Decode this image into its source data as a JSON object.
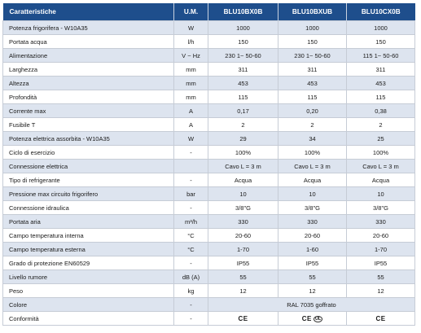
{
  "header": {
    "characteristics": "Caratteristiche",
    "unit": "U.M.",
    "models": [
      "BLU10BX0B",
      "BLU10BXUB",
      "BLU10CX0B"
    ]
  },
  "rows": [
    {
      "name": "Potenza frigorifera - W10A35",
      "unit": "W",
      "values": [
        "1000",
        "1000",
        "1000"
      ]
    },
    {
      "name": "Portata acqua",
      "unit": "l/h",
      "values": [
        "150",
        "150",
        "150"
      ]
    },
    {
      "name": "Alimentazione",
      "unit": "V ~ Hz",
      "values": [
        "230 1~ 50-60",
        "230 1~ 50-60",
        "115 1~ 50-60"
      ]
    },
    {
      "name": "Larghezza",
      "unit": "mm",
      "values": [
        "311",
        "311",
        "311"
      ]
    },
    {
      "name": "Altezza",
      "unit": "mm",
      "values": [
        "453",
        "453",
        "453"
      ]
    },
    {
      "name": "Profondità",
      "unit": "mm",
      "values": [
        "115",
        "115",
        "115"
      ]
    },
    {
      "name": "Corrente max",
      "unit": "A",
      "values": [
        "0,17",
        "0,20",
        "0,38"
      ]
    },
    {
      "name": "Fusibile T",
      "unit": "A",
      "values": [
        "2",
        "2",
        "2"
      ]
    },
    {
      "name": "Potenza elettrica assorbita - W10A35",
      "unit": "W",
      "values": [
        "29",
        "34",
        "25"
      ]
    },
    {
      "name": "Ciclo di esercizio",
      "unit": "-",
      "values": [
        "100%",
        "100%",
        "100%"
      ]
    },
    {
      "name": "Connessione elettrica",
      "unit": "",
      "values": [
        "Cavo L = 3 m",
        "Cavo L = 3 m",
        "Cavo L = 3 m"
      ]
    },
    {
      "name": "Tipo di refrigerante",
      "unit": "-",
      "values": [
        "Acqua",
        "Acqua",
        "Acqua"
      ]
    },
    {
      "name": "Pressione max circuito frigorifero",
      "unit": "bar",
      "values": [
        "10",
        "10",
        "10"
      ]
    },
    {
      "name": "Connessione idraulica",
      "unit": "-",
      "values": [
        "3/8\"G",
        "3/8\"G",
        "3/8\"G"
      ]
    },
    {
      "name": "Portata aria",
      "unit": "m³/h",
      "values": [
        "330",
        "330",
        "330"
      ]
    },
    {
      "name": "Campo temperatura interna",
      "unit": "°C",
      "values": [
        "20-60",
        "20-60",
        "20-60"
      ]
    },
    {
      "name": "Campo temperatura esterna",
      "unit": "°C",
      "values": [
        "1-70",
        "1-60",
        "1-70"
      ]
    },
    {
      "name": "Grado di protezione EN60529",
      "unit": "-",
      "values": [
        "IP55",
        "IP55",
        "IP55"
      ]
    },
    {
      "name": "Livello rumore",
      "unit": "dB (A)",
      "values": [
        "55",
        "55",
        "55"
      ]
    },
    {
      "name": "Peso",
      "unit": "kg",
      "values": [
        "12",
        "12",
        "12"
      ]
    }
  ],
  "colors_row": {
    "name": "Colore",
    "unit": "-",
    "value": "RAL 7035 goffrato"
  },
  "conformity_row": {
    "name": "Conformità",
    "unit": "-",
    "values": [
      "CE",
      "CE",
      "CE"
    ],
    "ul_mark": "UL"
  },
  "colors": {
    "header_bg": "#1e4e8c",
    "alt_row_bg": "#dde4ef"
  }
}
